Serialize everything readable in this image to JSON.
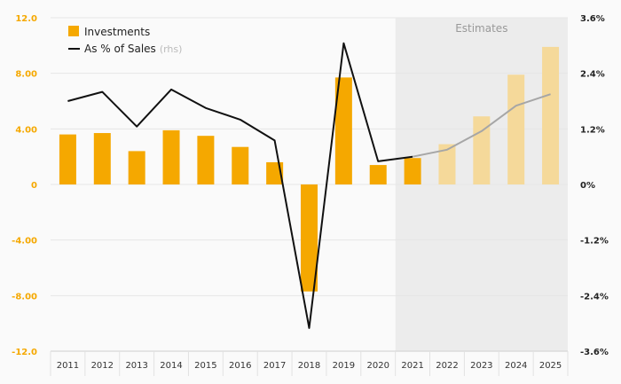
{
  "chart_data": {
    "type": "bar",
    "categories": [
      "2011",
      "2012",
      "2013",
      "2014",
      "2015",
      "2016",
      "2017",
      "2018",
      "2019",
      "2020",
      "2021",
      "2022",
      "2023",
      "2024",
      "2025"
    ],
    "series": [
      {
        "name": "Investments",
        "axis": "left",
        "kind": "bar",
        "values": [
          3.6,
          3.7,
          2.4,
          3.9,
          3.5,
          2.7,
          1.6,
          -7.7,
          7.7,
          1.4,
          1.9,
          2.9,
          4.9,
          7.9,
          9.9
        ]
      },
      {
        "name": "As % of Sales",
        "name_suffix": "(rhs)",
        "axis": "right",
        "kind": "line",
        "values": [
          1.8,
          2.0,
          1.25,
          2.05,
          1.65,
          1.4,
          0.95,
          -3.1,
          3.05,
          0.5,
          0.6,
          0.75,
          1.15,
          1.7,
          1.95
        ]
      }
    ],
    "estimates_from": "2021",
    "estimates_label": "Estimates",
    "ylim": [
      -12,
      12
    ],
    "yticks": [
      "-12.0",
      "-8.00",
      "-4.00",
      "0",
      "4.00",
      "8.00",
      "12.0"
    ],
    "ylim_right": [
      -3.6,
      3.6
    ],
    "yticks_right": [
      "-3.6%",
      "-2.4%",
      "-1.2%",
      "0%",
      "1.2%",
      "2.4%",
      "3.6%"
    ],
    "legend_position": "top-left",
    "title": "",
    "xlabel": "",
    "ylabel": ""
  },
  "colors": {
    "bar": "#f5a800",
    "bar_estimate": "#f5d99a",
    "line": "#111111",
    "line_estimate": "#a6a6a6",
    "estimate_band": "#ececec",
    "grid": "#e6e6e6"
  }
}
